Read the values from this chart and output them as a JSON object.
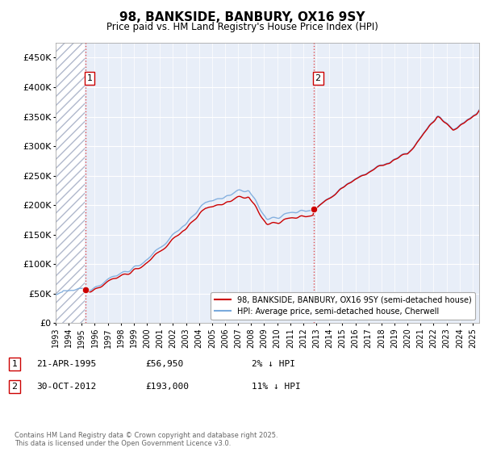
{
  "title": "98, BANKSIDE, BANBURY, OX16 9SY",
  "subtitle": "Price paid vs. HM Land Registry's House Price Index (HPI)",
  "ylim": [
    0,
    475000
  ],
  "yticks": [
    0,
    50000,
    100000,
    150000,
    200000,
    250000,
    300000,
    350000,
    400000,
    450000
  ],
  "ytick_labels": [
    "£0",
    "£50K",
    "£100K",
    "£150K",
    "£200K",
    "£250K",
    "£300K",
    "£350K",
    "£400K",
    "£450K"
  ],
  "bg_color": "#e8eef8",
  "hatch_color": "#b0b8cc",
  "grid_color": "#ffffff",
  "sale1_date": 1995.31,
  "sale1_price": 56950,
  "sale1_label": "1",
  "sale2_date": 2012.83,
  "sale2_price": 193000,
  "sale2_label": "2",
  "legend_line1": "98, BANKSIDE, BANBURY, OX16 9SY (semi-detached house)",
  "legend_line2": "HPI: Average price, semi-detached house, Cherwell",
  "footer": "Contains HM Land Registry data © Crown copyright and database right 2025.\nThis data is licensed under the Open Government Licence v3.0.",
  "price_color": "#cc0000",
  "hpi_color": "#7aaadd",
  "sale_marker_color": "#cc0000",
  "xlim_left": 1993.0,
  "xlim_right": 2025.5
}
